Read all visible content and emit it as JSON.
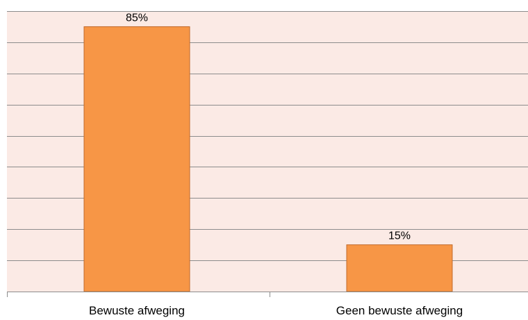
{
  "chart_data": {
    "type": "bar",
    "categories": [
      "Bewuste afweging",
      "Geen bewuste afweging"
    ],
    "values": [
      85,
      15
    ],
    "data_labels": [
      "85%",
      "15%"
    ],
    "title": "",
    "xlabel": "",
    "ylabel": "",
    "ylim": [
      0,
      90
    ],
    "y_gridline_step": 10,
    "grid": true,
    "legend": "none",
    "y_axis_labels_shown": false
  },
  "colors": {
    "plot_background": "#fbeae5",
    "bar_fill": "#f79646",
    "bar_stroke": "#c0692a",
    "gridline": "#8c8c8c",
    "axis": "#8c8c8c"
  }
}
